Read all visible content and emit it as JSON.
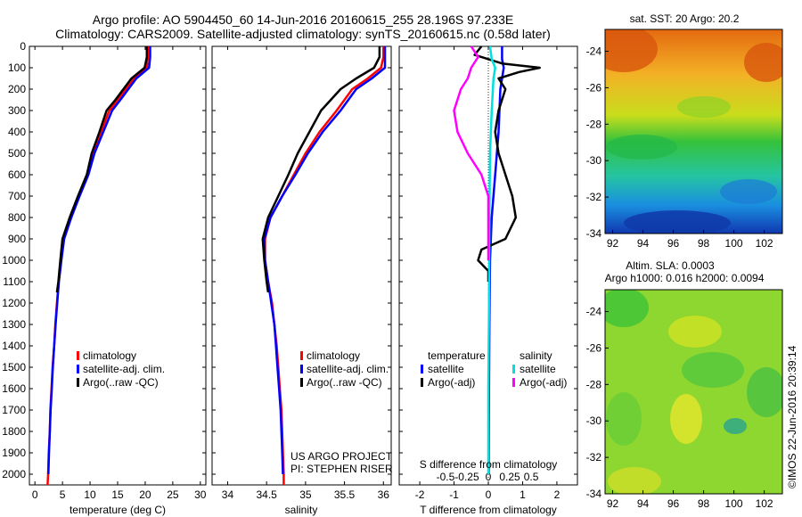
{
  "header": {
    "line1": "Argo profile: AO 5904450_60 14-Jun-2016 20160615_255 28.196S 97.233E",
    "line2": "Climatology: CARS2009. Satellite-adjusted climatology: synTS_20160615.nc (0.58d later)"
  },
  "credits": {
    "project": "US ARGO PROJECT",
    "pi": "PI: STEPHEN RISER",
    "imos": "©IMOS 22-Jun-2016 20:39:14"
  },
  "colors": {
    "climatology": "#ff0000",
    "satellite": "#0000ff",
    "argo": "#000000",
    "sal_satellite": "#00e0e0",
    "sal_argo": "#ff00ff"
  },
  "chart_data": [
    {
      "type": "line",
      "name": "temperature",
      "xlabel": "temperature (deg C)",
      "xlim": [
        -1,
        31
      ],
      "ylim": [
        0,
        2050
      ],
      "y_reversed": true,
      "xticks": [
        0,
        5,
        10,
        15,
        20,
        25,
        30
      ],
      "yticks": [
        0,
        100,
        200,
        300,
        400,
        500,
        600,
        700,
        800,
        900,
        1000,
        1100,
        1200,
        1300,
        1400,
        1500,
        1600,
        1700,
        1800,
        1900,
        2000
      ],
      "legend": [
        "climatology",
        "satellite-adj. clim.",
        "Argo(..raw -QC)"
      ],
      "series": [
        {
          "name": "climatology",
          "color": "#ff0000",
          "points": [
            [
              20.5,
              0
            ],
            [
              20.5,
              50
            ],
            [
              20.3,
              100
            ],
            [
              18,
              150
            ],
            [
              15,
              250
            ],
            [
              13.5,
              300
            ],
            [
              12,
              400
            ],
            [
              10.5,
              500
            ],
            [
              9.5,
              600
            ],
            [
              8,
              700
            ],
            [
              6.5,
              800
            ],
            [
              5.2,
              900
            ],
            [
              4.7,
              1000
            ],
            [
              4.3,
              1100
            ],
            [
              4,
              1200
            ],
            [
              3.7,
              1300
            ],
            [
              3.5,
              1400
            ],
            [
              3.2,
              1500
            ],
            [
              3,
              1600
            ],
            [
              2.8,
              1700
            ],
            [
              2.7,
              1800
            ],
            [
              2.5,
              1900
            ],
            [
              2.4,
              2000
            ],
            [
              2.3,
              2050
            ]
          ]
        },
        {
          "name": "satellite",
          "color": "#0000ff",
          "points": [
            [
              20.9,
              0
            ],
            [
              20.9,
              50
            ],
            [
              20.7,
              100
            ],
            [
              18.4,
              150
            ],
            [
              15.5,
              250
            ],
            [
              14,
              300
            ],
            [
              12.4,
              400
            ],
            [
              10.8,
              500
            ],
            [
              9.7,
              600
            ],
            [
              8.1,
              700
            ],
            [
              6.6,
              800
            ],
            [
              5.3,
              900
            ],
            [
              4.8,
              1000
            ],
            [
              4.35,
              1100
            ],
            [
              4.05,
              1200
            ],
            [
              3.75,
              1300
            ],
            [
              3.5,
              1400
            ],
            [
              3.25,
              1500
            ],
            [
              3.05,
              1600
            ],
            [
              2.85,
              1700
            ],
            [
              2.7,
              1800
            ],
            [
              2.55,
              1900
            ],
            [
              2.45,
              2000
            ]
          ]
        },
        {
          "name": "argo",
          "color": "#000000",
          "points": [
            [
              20.3,
              0
            ],
            [
              20.3,
              50
            ],
            [
              19.9,
              100
            ],
            [
              17.5,
              150
            ],
            [
              14.6,
              250
            ],
            [
              13,
              300
            ],
            [
              11.7,
              400
            ],
            [
              10.3,
              500
            ],
            [
              9.4,
              600
            ],
            [
              7.8,
              700
            ],
            [
              6.3,
              800
            ],
            [
              5,
              900
            ],
            [
              4.6,
              1000
            ],
            [
              4.25,
              1100
            ],
            [
              4,
              1150
            ]
          ]
        }
      ]
    },
    {
      "type": "line",
      "name": "salinity",
      "xlabel": "salinity",
      "xlim": [
        33.8,
        36.1
      ],
      "ylim": [
        0,
        2050
      ],
      "y_reversed": true,
      "xticks": [
        34,
        34.5,
        35,
        35.5,
        36
      ],
      "xticklabels": [
        "34",
        "34.5",
        "35",
        "35.5",
        "36"
      ],
      "legend": [
        "climatology",
        "satellite-adj. clim.",
        "Argo(..raw -QC)"
      ],
      "series": [
        {
          "name": "climatology",
          "color": "#ff0000",
          "points": [
            [
              36,
              0
            ],
            [
              36,
              50
            ],
            [
              35.97,
              100
            ],
            [
              35.8,
              150
            ],
            [
              35.6,
              200
            ],
            [
              35.4,
              300
            ],
            [
              35.18,
              400
            ],
            [
              35,
              500
            ],
            [
              34.85,
              600
            ],
            [
              34.7,
              700
            ],
            [
              34.55,
              800
            ],
            [
              34.48,
              900
            ],
            [
              34.48,
              1000
            ],
            [
              34.52,
              1100
            ],
            [
              34.57,
              1200
            ],
            [
              34.6,
              1300
            ],
            [
              34.63,
              1400
            ],
            [
              34.65,
              1500
            ],
            [
              34.67,
              1600
            ],
            [
              34.69,
              1700
            ],
            [
              34.7,
              1800
            ],
            [
              34.71,
              1900
            ],
            [
              34.72,
              2000
            ],
            [
              34.72,
              2050
            ]
          ]
        },
        {
          "name": "satellite",
          "color": "#0000ff",
          "points": [
            [
              36.02,
              0
            ],
            [
              36.02,
              50
            ],
            [
              36.02,
              100
            ],
            [
              35.85,
              150
            ],
            [
              35.65,
              200
            ],
            [
              35.45,
              300
            ],
            [
              35.22,
              400
            ],
            [
              35.03,
              500
            ],
            [
              34.87,
              600
            ],
            [
              34.7,
              700
            ],
            [
              34.55,
              800
            ],
            [
              34.47,
              900
            ],
            [
              34.48,
              1000
            ],
            [
              34.52,
              1100
            ],
            [
              34.56,
              1200
            ],
            [
              34.6,
              1300
            ],
            [
              34.62,
              1400
            ],
            [
              34.64,
              1500
            ],
            [
              34.66,
              1600
            ],
            [
              34.68,
              1700
            ],
            [
              34.69,
              1800
            ],
            [
              34.7,
              1900
            ],
            [
              34.71,
              2000
            ]
          ]
        },
        {
          "name": "argo",
          "color": "#000000",
          "points": [
            [
              35.95,
              0
            ],
            [
              35.95,
              50
            ],
            [
              35.88,
              100
            ],
            [
              35.65,
              150
            ],
            [
              35.45,
              200
            ],
            [
              35.2,
              300
            ],
            [
              35.05,
              400
            ],
            [
              34.9,
              500
            ],
            [
              34.78,
              600
            ],
            [
              34.65,
              700
            ],
            [
              34.52,
              800
            ],
            [
              34.45,
              900
            ],
            [
              34.47,
              1000
            ],
            [
              34.5,
              1100
            ],
            [
              34.52,
              1150
            ]
          ]
        }
      ]
    },
    {
      "type": "line",
      "name": "differences",
      "xlabel": "T difference from climatology",
      "xlabel_top": "S difference from climatology",
      "xlim": [
        -2.6,
        2.6
      ],
      "ylim": [
        0,
        2050
      ],
      "y_reversed": true,
      "xticks": [
        -2,
        -1,
        0,
        1,
        2
      ],
      "top_ticks": [
        -0.5,
        -0.25,
        0,
        0.25,
        0.5
      ],
      "top_ticklabels": [
        "-0.5",
        "-0.25",
        "0",
        "0.25",
        "0.5"
      ],
      "legend_headers": [
        "temperature",
        "salinity"
      ],
      "legend": [
        "satellite",
        "Argo(-adj)",
        "satellite",
        "Argo(-adj)"
      ],
      "series": [
        {
          "name": "T satellite",
          "color": "#0000ff",
          "points": [
            [
              0.4,
              0
            ],
            [
              0.4,
              60
            ],
            [
              0.45,
              100
            ],
            [
              0.35,
              200
            ],
            [
              0.3,
              400
            ],
            [
              0.2,
              600
            ],
            [
              0.1,
              800
            ],
            [
              0.05,
              1000
            ],
            [
              0.03,
              1300
            ],
            [
              0.02,
              1600
            ],
            [
              0.01,
              2000
            ]
          ]
        },
        {
          "name": "T Argo",
          "color": "#000000",
          "points": [
            [
              -0.2,
              0
            ],
            [
              -0.4,
              40
            ],
            [
              0.4,
              80
            ],
            [
              1.5,
              100
            ],
            [
              0.9,
              120
            ],
            [
              0.3,
              150
            ],
            [
              0.5,
              200
            ],
            [
              0.3,
              300
            ],
            [
              0.2,
              400
            ],
            [
              0.3,
              500
            ],
            [
              0.5,
              600
            ],
            [
              0.7,
              700
            ],
            [
              0.8,
              800
            ],
            [
              0.5,
              900
            ],
            [
              -0.2,
              950
            ],
            [
              -0.3,
              1000
            ],
            [
              0,
              1050
            ],
            [
              0,
              1100
            ]
          ]
        },
        {
          "name": "S satellite",
          "color": "#00e0e0",
          "points": [
            [
              0.05,
              0
            ],
            [
              0.1,
              60
            ],
            [
              0.2,
              100
            ],
            [
              0.15,
              150
            ],
            [
              0.1,
              300
            ],
            [
              0.05,
              500
            ],
            [
              0.03,
              800
            ],
            [
              0.02,
              1200
            ],
            [
              0,
              1600
            ],
            [
              0,
              2000
            ]
          ]
        },
        {
          "name": "S Argo",
          "color": "#ff00ff",
          "points": [
            [
              -0.5,
              0
            ],
            [
              -0.3,
              50
            ],
            [
              -0.5,
              100
            ],
            [
              -0.6,
              150
            ],
            [
              -0.8,
              200
            ],
            [
              -1,
              300
            ],
            [
              -0.9,
              400
            ],
            [
              -0.6,
              500
            ],
            [
              -0.2,
              600
            ],
            [
              0,
              700
            ],
            [
              0,
              1000
            ]
          ]
        }
      ]
    },
    {
      "type": "heatmap",
      "name": "sst-map",
      "title": "sat. SST: 20 Argo: 20.2",
      "xlim": [
        91.5,
        103.2
      ],
      "ylim": [
        -34,
        -22.8
      ],
      "xticks": [
        92,
        94,
        96,
        98,
        100,
        102
      ],
      "yticks": [
        -24,
        -26,
        -28,
        -30,
        -32,
        -34
      ]
    },
    {
      "type": "heatmap",
      "name": "sla-map",
      "title": "Altim. SLA: 0.0003",
      "subtitle": "Argo h1000: 0.016 h2000: 0.0094",
      "xlim": [
        91.5,
        103.2
      ],
      "ylim": [
        -34,
        -22.8
      ],
      "xticks": [
        92,
        94,
        96,
        98,
        100,
        102
      ],
      "yticks": [
        -24,
        -26,
        -28,
        -30,
        -32,
        -34
      ]
    }
  ]
}
